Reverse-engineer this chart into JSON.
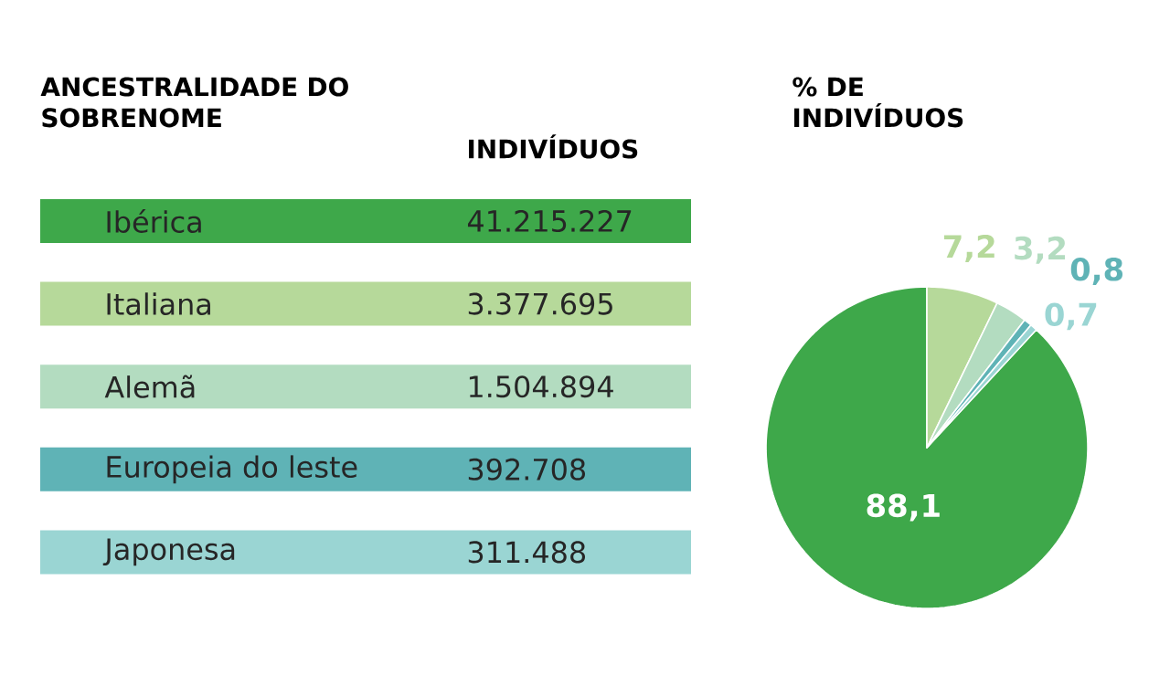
{
  "chart_data": [
    {
      "type": "other",
      "title": "ANCESTRALIDADE DO SOBRENOME",
      "xlabel": "INDIVÍDUOS",
      "categories": [
        "Ibérica",
        "Italiana",
        "Alemã",
        "Europeia do leste",
        "Japonesa"
      ],
      "value_labels": [
        "41.215.227",
        "3.377.695",
        "1.504.894",
        "392.708",
        "311.488"
      ],
      "colors": [
        "#3ea84a",
        "#b6d99a",
        "#b3dcc0",
        "#5fb3b6",
        "#9ad5d3"
      ]
    },
    {
      "type": "pie",
      "title": "% DE INDIVÍDUOS",
      "categories": [
        null,
        null,
        null,
        null,
        null
      ],
      "values": [
        88.1,
        7.2,
        3.2,
        0.8,
        0.7
      ],
      "value_labels": [
        "88,1",
        "7,2",
        "3,2",
        "0,8",
        "0,7"
      ],
      "colors": [
        "#3ea84a",
        "#b6d99a",
        "#b3dcc0",
        "#5fb3b6",
        "#9ad5d3"
      ]
    }
  ]
}
